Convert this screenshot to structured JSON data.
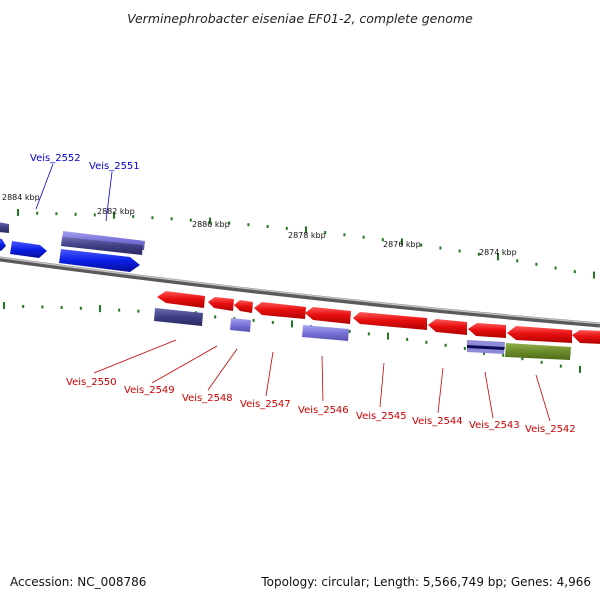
{
  "title": "Verminephrobacter eiseniae EF01-2, complete genome",
  "footer": {
    "accession": "Accession: NC_008786",
    "summary": "Topology: circular; Length: 5,566,749 bp; Genes: 4,966"
  },
  "colors": {
    "forward_blue": "#0a1ee6",
    "navy": "#0b0b5a",
    "slate": "#4a4a90",
    "lavender": "#7a72d8",
    "red": "#e81010",
    "olive": "#6b8c2a",
    "backbone": "#7a7a7a",
    "tick": "#1f7a1f",
    "top_label": "#0000cc",
    "bottom_label": "#cc0000"
  },
  "position_labels": [
    "2884 kbp",
    "2882 kbp",
    "2880 kbp",
    "2878 kbp",
    "2876 kbp",
    "2874 kbp"
  ],
  "top_genes": [
    {
      "id": "Veis_2552"
    },
    {
      "id": "Veis_2551"
    }
  ],
  "bottom_genes": [
    {
      "id": "Veis_2550"
    },
    {
      "id": "Veis_2549"
    },
    {
      "id": "Veis_2548"
    },
    {
      "id": "Veis_2547"
    },
    {
      "id": "Veis_2546"
    },
    {
      "id": "Veis_2545"
    },
    {
      "id": "Veis_2544"
    },
    {
      "id": "Veis_2543"
    },
    {
      "id": "Veis_2542"
    }
  ]
}
